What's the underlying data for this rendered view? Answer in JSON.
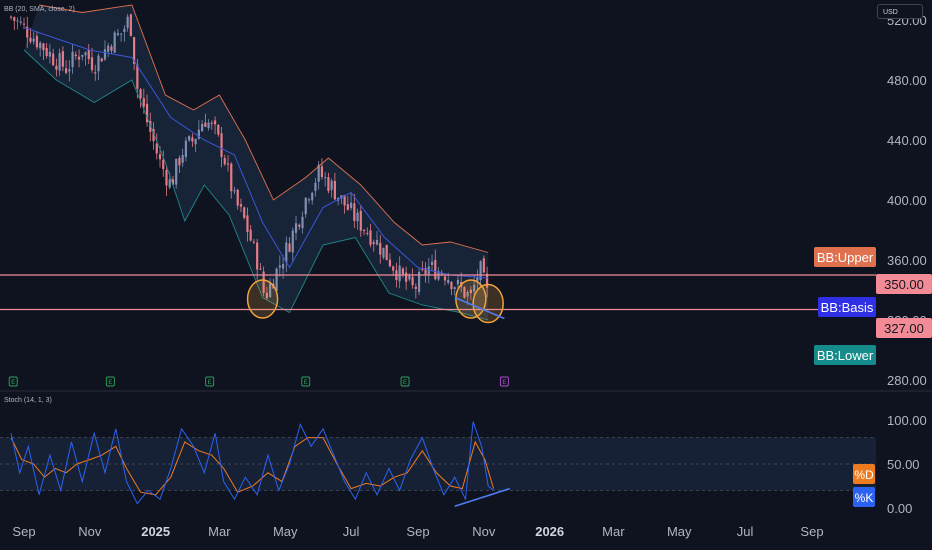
{
  "header": {
    "bb_indicator_label": "BB (20, SMA, close, 2)",
    "currency_label": "USD"
  },
  "stoch_panel": {
    "indicator_label": "Stoch (14, 1, 3)"
  },
  "tags": {
    "bb_upper": "BB:Upper",
    "bb_basis": "BB:Basis",
    "bb_lower": "BB:Lower",
    "price_350": "350.00",
    "price_327": "327.00",
    "pct_d": "%D",
    "pct_k": "%K"
  },
  "earnings_markers": [
    "E",
    "E",
    "E",
    "E",
    "E",
    "E"
  ],
  "colors": {
    "background": "#0f1320",
    "up_candle": "#7f8fb2",
    "down_candle": "#e57b86",
    "bb_upper": "#e0714f",
    "bb_basis": "#3a56d8",
    "bb_lower": "#1e8a86",
    "band_fill": "#1b2a3f",
    "horizontal_line": "#f28b96",
    "stoch_d": "#ef7b1f",
    "stoch_k": "#2b62f2",
    "trendline": "#4d7cf0",
    "circle": "#f2a33a",
    "earnings_green": "#2aa65a",
    "earnings_purple": "#b44cd6"
  },
  "chart_data": {
    "type": "line",
    "subtype": "candlestick with Bollinger Bands and Stochastic oscillator",
    "price_axis": {
      "ticks": [
        "520.00",
        "480.00",
        "440.00",
        "400.00",
        "360.00",
        "320.00",
        "280.00"
      ],
      "range": [
        272,
        532
      ]
    },
    "time_axis": {
      "labels": [
        "Sep",
        "Nov",
        "2025",
        "Mar",
        "May",
        "Jul",
        "Sep",
        "Nov",
        "2026",
        "Mar",
        "May",
        "Jul",
        "Sep"
      ]
    },
    "horizontal_levels": [
      350,
      327
    ],
    "price_path": [
      [
        "2024-08-20",
        522
      ],
      [
        "2024-09-01",
        515
      ],
      [
        "2024-09-15",
        505
      ],
      [
        "2024-09-28",
        495
      ],
      [
        "2024-10-10",
        488
      ],
      [
        "2024-10-25",
        500
      ],
      [
        "2024-11-05",
        490
      ],
      [
        "2024-11-20",
        505
      ],
      [
        "2024-12-01",
        512
      ],
      [
        "2024-12-08",
        522
      ],
      [
        "2024-12-15",
        475
      ],
      [
        "2024-12-25",
        450
      ],
      [
        "2025-01-05",
        425
      ],
      [
        "2025-01-15",
        410
      ],
      [
        "2025-01-25",
        432
      ],
      [
        "2025-02-05",
        440
      ],
      [
        "2025-02-15",
        455
      ],
      [
        "2025-02-25",
        445
      ],
      [
        "2025-03-05",
        430
      ],
      [
        "2025-03-15",
        400
      ],
      [
        "2025-03-25",
        385
      ],
      [
        "2025-04-05",
        360
      ],
      [
        "2025-04-12",
        335
      ],
      [
        "2025-04-20",
        348
      ],
      [
        "2025-05-01",
        365
      ],
      [
        "2025-05-12",
        385
      ],
      [
        "2025-05-22",
        405
      ],
      [
        "2025-06-01",
        418
      ],
      [
        "2025-06-12",
        410
      ],
      [
        "2025-06-22",
        400
      ],
      [
        "2025-07-05",
        388
      ],
      [
        "2025-07-18",
        378
      ],
      [
        "2025-08-01",
        365
      ],
      [
        "2025-08-15",
        350
      ],
      [
        "2025-08-28",
        340
      ],
      [
        "2025-09-10",
        355
      ],
      [
        "2025-09-25",
        352
      ],
      [
        "2025-10-08",
        342
      ],
      [
        "2025-10-20",
        335
      ],
      [
        "2025-10-28",
        355
      ],
      [
        "2025-11-05",
        335
      ]
    ],
    "bb_upper_path": [
      [
        "2024-09-15",
        530
      ],
      [
        "2024-10-25",
        525
      ],
      [
        "2024-12-10",
        530
      ],
      [
        "2025-01-10",
        470
      ],
      [
        "2025-02-05",
        460
      ],
      [
        "2025-03-01",
        470
      ],
      [
        "2025-03-25",
        440
      ],
      [
        "2025-04-20",
        400
      ],
      [
        "2025-05-20",
        415
      ],
      [
        "2025-06-10",
        428
      ],
      [
        "2025-07-10",
        410
      ],
      [
        "2025-08-10",
        385
      ],
      [
        "2025-09-05",
        370
      ],
      [
        "2025-10-01",
        372
      ],
      [
        "2025-11-05",
        365
      ]
    ],
    "bb_basis_path": [
      [
        "2024-09-01",
        515
      ],
      [
        "2024-11-01",
        500
      ],
      [
        "2024-12-10",
        495
      ],
      [
        "2025-01-15",
        455
      ],
      [
        "2025-02-15",
        440
      ],
      [
        "2025-03-15",
        430
      ],
      [
        "2025-04-10",
        385
      ],
      [
        "2025-05-05",
        355
      ],
      [
        "2025-06-05",
        395
      ],
      [
        "2025-07-01",
        405
      ],
      [
        "2025-08-01",
        375
      ],
      [
        "2025-09-01",
        355
      ],
      [
        "2025-10-01",
        350
      ],
      [
        "2025-11-05",
        348
      ]
    ],
    "bb_lower_path": [
      [
        "2024-09-01",
        500
      ],
      [
        "2024-10-01",
        480
      ],
      [
        "2024-11-05",
        465
      ],
      [
        "2024-12-10",
        480
      ],
      [
        "2025-01-10",
        425
      ],
      [
        "2025-01-28",
        386
      ],
      [
        "2025-02-15",
        410
      ],
      [
        "2025-03-10",
        390
      ],
      [
        "2025-04-10",
        335
      ],
      [
        "2025-05-05",
        325
      ],
      [
        "2025-06-05",
        370
      ],
      [
        "2025-07-05",
        375
      ],
      [
        "2025-08-05",
        338
      ],
      [
        "2025-09-05",
        330
      ],
      [
        "2025-10-10",
        325
      ],
      [
        "2025-11-05",
        320
      ]
    ],
    "circled_lows": [
      {
        "date": "2025-04-10",
        "price": 334
      },
      {
        "date": "2025-10-20",
        "price": 334
      },
      {
        "date": "2025-11-05",
        "price": 331
      }
    ],
    "price_trendline": [
      [
        "2025-10-05",
        335
      ],
      [
        "2025-11-20",
        321
      ]
    ],
    "stoch_axis": {
      "ticks": [
        "100.00",
        "50.00",
        "0.00"
      ],
      "range": [
        -8,
        110
      ],
      "bands": [
        80,
        50,
        20
      ]
    },
    "stoch_k_path": [
      [
        "2024-08-20",
        85
      ],
      [
        "2024-08-28",
        40
      ],
      [
        "2024-09-05",
        70
      ],
      [
        "2024-09-15",
        15
      ],
      [
        "2024-09-25",
        60
      ],
      [
        "2024-10-05",
        20
      ],
      [
        "2024-10-15",
        75
      ],
      [
        "2024-10-25",
        30
      ],
      [
        "2024-11-05",
        85
      ],
      [
        "2024-11-15",
        40
      ],
      [
        "2024-11-25",
        90
      ],
      [
        "2024-12-05",
        30
      ],
      [
        "2024-12-15",
        5
      ],
      [
        "2024-12-25",
        20
      ],
      [
        "2025-01-05",
        10
      ],
      [
        "2025-01-15",
        45
      ],
      [
        "2025-01-25",
        90
      ],
      [
        "2025-02-05",
        70
      ],
      [
        "2025-02-15",
        40
      ],
      [
        "2025-02-25",
        85
      ],
      [
        "2025-03-05",
        30
      ],
      [
        "2025-03-15",
        10
      ],
      [
        "2025-03-25",
        35
      ],
      [
        "2025-04-05",
        15
      ],
      [
        "2025-04-15",
        60
      ],
      [
        "2025-04-25",
        20
      ],
      [
        "2025-05-05",
        50
      ],
      [
        "2025-05-15",
        95
      ],
      [
        "2025-05-25",
        70
      ],
      [
        "2025-06-05",
        90
      ],
      [
        "2025-06-15",
        60
      ],
      [
        "2025-06-25",
        30
      ],
      [
        "2025-07-05",
        10
      ],
      [
        "2025-07-15",
        40
      ],
      [
        "2025-07-25",
        15
      ],
      [
        "2025-08-05",
        45
      ],
      [
        "2025-08-15",
        20
      ],
      [
        "2025-08-25",
        55
      ],
      [
        "2025-09-05",
        80
      ],
      [
        "2025-09-15",
        45
      ],
      [
        "2025-09-25",
        15
      ],
      [
        "2025-10-05",
        35
      ],
      [
        "2025-10-15",
        10
      ],
      [
        "2025-10-22",
        98
      ],
      [
        "2025-10-30",
        70
      ],
      [
        "2025-11-05",
        25
      ],
      [
        "2025-11-10",
        20
      ]
    ],
    "stoch_d_path": [
      [
        "2024-08-20",
        80
      ],
      [
        "2024-08-30",
        55
      ],
      [
        "2024-09-10",
        50
      ],
      [
        "2024-09-20",
        35
      ],
      [
        "2024-09-30",
        45
      ],
      [
        "2024-10-10",
        40
      ],
      [
        "2024-10-20",
        50
      ],
      [
        "2024-11-01",
        55
      ],
      [
        "2024-11-12",
        60
      ],
      [
        "2024-11-25",
        70
      ],
      [
        "2024-12-05",
        45
      ],
      [
        "2024-12-18",
        18
      ],
      [
        "2025-01-01",
        15
      ],
      [
        "2025-01-15",
        35
      ],
      [
        "2025-01-28",
        75
      ],
      [
        "2025-02-10",
        65
      ],
      [
        "2025-02-22",
        60
      ],
      [
        "2025-03-05",
        45
      ],
      [
        "2025-03-18",
        18
      ],
      [
        "2025-04-01",
        25
      ],
      [
        "2025-04-15",
        40
      ],
      [
        "2025-04-28",
        30
      ],
      [
        "2025-05-10",
        70
      ],
      [
        "2025-05-22",
        80
      ],
      [
        "2025-06-05",
        80
      ],
      [
        "2025-06-18",
        50
      ],
      [
        "2025-07-01",
        22
      ],
      [
        "2025-07-15",
        28
      ],
      [
        "2025-07-28",
        25
      ],
      [
        "2025-08-10",
        35
      ],
      [
        "2025-08-22",
        40
      ],
      [
        "2025-09-05",
        65
      ],
      [
        "2025-09-18",
        40
      ],
      [
        "2025-10-01",
        25
      ],
      [
        "2025-10-12",
        22
      ],
      [
        "2025-10-24",
        75
      ],
      [
        "2025-11-02",
        55
      ],
      [
        "2025-11-10",
        22
      ]
    ],
    "stoch_trendline": [
      [
        "2025-10-05",
        2
      ],
      [
        "2025-11-25",
        22
      ]
    ]
  }
}
